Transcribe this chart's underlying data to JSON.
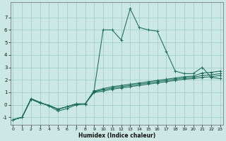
{
  "xlabel": "Humidex (Indice chaleur)",
  "bg_color": "#cce8e4",
  "grid_color": "#99ccc6",
  "line_color": "#1a6b5a",
  "x_ticks": [
    0,
    1,
    2,
    3,
    4,
    5,
    6,
    7,
    8,
    9,
    10,
    11,
    12,
    13,
    14,
    15,
    16,
    17,
    18,
    19,
    20,
    21,
    22,
    23
  ],
  "y_ticks": [
    -1,
    0,
    1,
    2,
    3,
    4,
    5,
    6,
    7
  ],
  "xlim": [
    -0.3,
    23.3
  ],
  "ylim": [
    -1.6,
    8.2
  ],
  "series1_y": [
    -1.2,
    -1.0,
    0.5,
    0.2,
    -0.1,
    -0.5,
    -0.3,
    0.0,
    0.05,
    1.15,
    6.0,
    6.0,
    5.2,
    7.7,
    6.2,
    6.0,
    5.9,
    4.3,
    2.7,
    2.5,
    2.5,
    3.0,
    2.2,
    2.1
  ],
  "series2_y": [
    -1.2,
    -1.0,
    0.45,
    0.15,
    -0.05,
    -0.35,
    -0.15,
    0.07,
    0.07,
    1.1,
    1.3,
    1.45,
    1.55,
    1.65,
    1.75,
    1.85,
    1.95,
    2.05,
    2.15,
    2.25,
    2.3,
    2.55,
    2.6,
    2.7
  ],
  "series3_y": [
    -1.2,
    -1.0,
    0.45,
    0.15,
    -0.05,
    -0.35,
    -0.15,
    0.07,
    0.07,
    1.05,
    1.2,
    1.35,
    1.45,
    1.55,
    1.65,
    1.75,
    1.85,
    1.95,
    2.05,
    2.15,
    2.2,
    2.35,
    2.4,
    2.5
  ],
  "series4_y": [
    -1.2,
    -1.0,
    0.45,
    0.15,
    -0.05,
    -0.35,
    -0.15,
    0.07,
    0.07,
    1.0,
    1.1,
    1.25,
    1.35,
    1.45,
    1.55,
    1.65,
    1.75,
    1.85,
    1.95,
    2.05,
    2.1,
    2.2,
    2.25,
    2.35
  ]
}
